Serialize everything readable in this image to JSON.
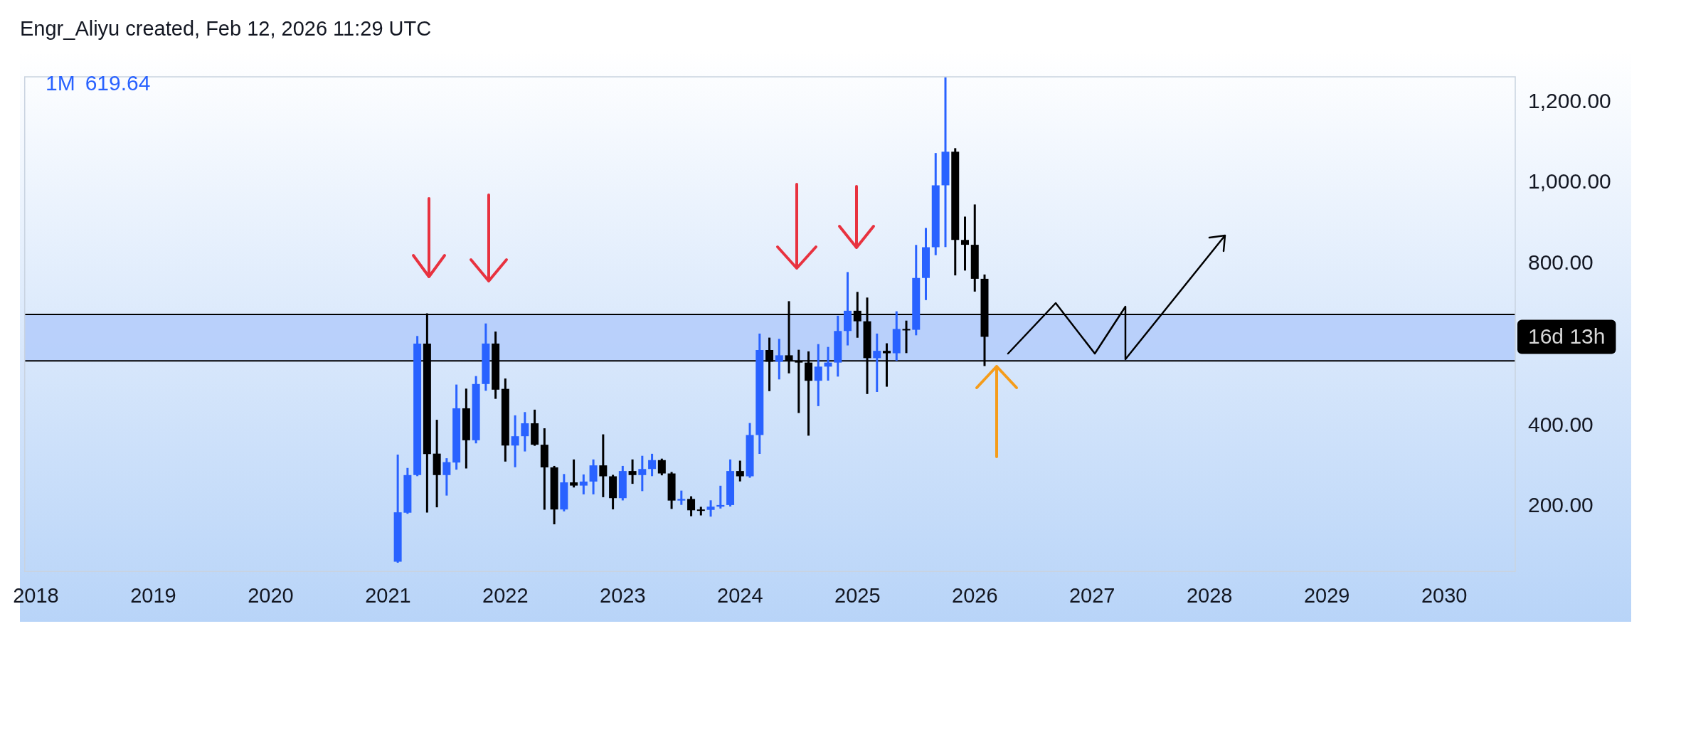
{
  "chart_data": {
    "type": "candlestick",
    "title": "1M",
    "annotations": [
      "Engr_Aliyu created, Feb 12, 2026 11:29 UTC",
      "619.64",
      "16d 13h"
    ],
    "x": [
      "2021-02",
      "2021-03",
      "2021-04",
      "2021-05",
      "2021-06",
      "2021-07",
      "2021-08",
      "2021-09",
      "2021-10",
      "2021-11",
      "2021-12",
      "2022-01",
      "2022-02",
      "2022-03",
      "2022-04",
      "2022-05",
      "2022-06",
      "2022-07",
      "2022-08",
      "2022-09",
      "2022-10",
      "2022-11",
      "2022-12",
      "2023-01",
      "2023-02",
      "2023-03",
      "2023-04",
      "2023-05",
      "2023-06",
      "2023-07",
      "2023-08",
      "2023-09",
      "2023-10",
      "2023-11",
      "2023-12",
      "2024-01",
      "2024-02",
      "2024-03",
      "2024-04",
      "2024-05",
      "2024-06",
      "2024-07",
      "2024-08",
      "2024-09",
      "2024-10",
      "2024-11",
      "2024-12",
      "2025-01",
      "2025-02",
      "2025-03",
      "2025-04",
      "2025-05",
      "2025-06",
      "2025-07",
      "2025-08",
      "2025-09",
      "2025-10",
      "2025-11",
      "2025-12",
      "2026-01",
      "2026-02"
    ],
    "ohlc": [
      [
        64,
        326,
        64,
        186
      ],
      [
        185,
        293,
        185,
        278
      ],
      [
        278,
        619,
        278,
        603
      ],
      [
        603,
        675,
        188,
        330
      ],
      [
        331,
        412,
        201,
        278
      ],
      [
        278,
        317,
        230,
        310
      ],
      [
        309,
        499,
        294,
        443
      ],
      [
        443,
        489,
        297,
        364
      ],
      [
        364,
        520,
        359,
        503
      ],
      [
        503,
        650,
        489,
        603
      ],
      [
        603,
        630,
        469,
        489
      ],
      [
        491,
        514,
        314,
        351
      ],
      [
        351,
        423,
        300,
        374
      ],
      [
        374,
        431,
        339,
        406
      ],
      [
        406,
        437,
        353,
        353
      ],
      [
        353,
        391,
        195,
        297
      ],
      [
        297,
        298,
        159,
        193
      ],
      [
        193,
        278,
        191,
        260
      ],
      [
        260,
        314,
        250,
        252
      ],
      [
        252,
        277,
        233,
        262
      ],
      [
        262,
        314,
        233,
        302
      ],
      [
        302,
        376,
        226,
        275
      ],
      [
        275,
        276,
        196,
        221
      ],
      [
        221,
        298,
        218,
        288
      ],
      [
        288,
        314,
        259,
        278
      ],
      [
        278,
        323,
        241,
        293
      ],
      [
        293,
        328,
        278,
        315
      ],
      [
        315,
        316,
        280,
        282
      ],
      [
        282,
        283,
        197,
        215
      ],
      [
        215,
        237,
        207,
        219
      ],
      [
        219,
        223,
        179,
        191
      ],
      [
        193,
        197,
        181,
        192
      ],
      [
        192,
        213,
        178,
        200
      ],
      [
        200,
        249,
        198,
        204
      ],
      [
        204,
        314,
        203,
        288
      ],
      [
        288,
        311,
        265,
        275
      ],
      [
        275,
        404,
        274,
        377
      ],
      [
        377,
        625,
        333,
        587
      ],
      [
        587,
        615,
        488,
        558
      ],
      [
        558,
        612,
        517,
        574
      ],
      [
        574,
        705,
        532,
        560
      ],
      [
        560,
        585,
        434,
        556
      ],
      [
        556,
        581,
        378,
        511
      ],
      [
        511,
        599,
        451,
        546
      ],
      [
        546,
        592,
        514,
        556
      ],
      [
        556,
        669,
        524,
        634
      ],
      [
        634,
        777,
        601,
        684
      ],
      [
        684,
        728,
        620,
        658
      ],
      [
        658,
        714,
        481,
        567
      ],
      [
        567,
        625,
        486,
        585
      ],
      [
        585,
        601,
        499,
        579
      ],
      [
        579,
        680,
        563,
        639
      ],
      [
        639,
        657,
        582,
        637
      ],
      [
        637,
        844,
        626,
        765
      ],
      [
        765,
        886,
        713,
        841
      ],
      [
        841,
        1071,
        824,
        994
      ],
      [
        994,
        1258,
        844,
        1077
      ],
      [
        1077,
        1083,
        774,
        859
      ],
      [
        859,
        914,
        786,
        847
      ],
      [
        847,
        944,
        734,
        763
      ],
      [
        763,
        771,
        550,
        619.64
      ]
    ],
    "colors": [
      "#2962ff",
      "#2962ff",
      "#2962ff",
      "#000000",
      "#000000",
      "#2962ff",
      "#2962ff",
      "#000000",
      "#2962ff",
      "#2962ff",
      "#000000",
      "#000000",
      "#2962ff",
      "#2962ff",
      "#000000",
      "#000000",
      "#000000",
      "#2962ff",
      "#000000",
      "#2962ff",
      "#2962ff",
      "#000000",
      "#000000",
      "#2962ff",
      "#000000",
      "#2962ff",
      "#2962ff",
      "#000000",
      "#000000",
      "#2962ff",
      "#000000",
      "#000000",
      "#2962ff",
      "#2962ff",
      "#2962ff",
      "#000000",
      "#2962ff",
      "#2962ff",
      "#000000",
      "#2962ff",
      "#000000",
      "#000000",
      "#000000",
      "#2962ff",
      "#2962ff",
      "#2962ff",
      "#2962ff",
      "#000000",
      "#000000",
      "#2962ff",
      "#000000",
      "#2962ff",
      "#000000",
      "#2962ff",
      "#2962ff",
      "#2962ff",
      "#2962ff",
      "#000000",
      "#000000",
      "#000000",
      "#000000"
    ],
    "bands": [
      {
        "axis": "y",
        "from": 560,
        "to": 675,
        "color": "#b3cbfa"
      }
    ],
    "ref_lines": [
      {
        "axis": "y",
        "value": 560,
        "color": "#000000"
      },
      {
        "axis": "y",
        "value": 675,
        "color": "#000000"
      }
    ],
    "xlim": [
      "2017-11-27",
      "2030-08-09"
    ],
    "xticks": [
      "2018",
      "2019",
      "2020",
      "2021",
      "2022",
      "2023",
      "2024",
      "2025",
      "2026",
      "2027",
      "2028",
      "2029",
      "2030"
    ],
    "ylim": [
      40,
      1262
    ],
    "yticks": [
      {
        "value": 200,
        "label": "200.00"
      },
      {
        "value": 400,
        "label": "400.00"
      },
      {
        "value": 800,
        "label": "800.00"
      },
      {
        "value": 1000,
        "label": "1,000.00"
      },
      {
        "value": 1200,
        "label": "1,200.00"
      }
    ]
  }
}
